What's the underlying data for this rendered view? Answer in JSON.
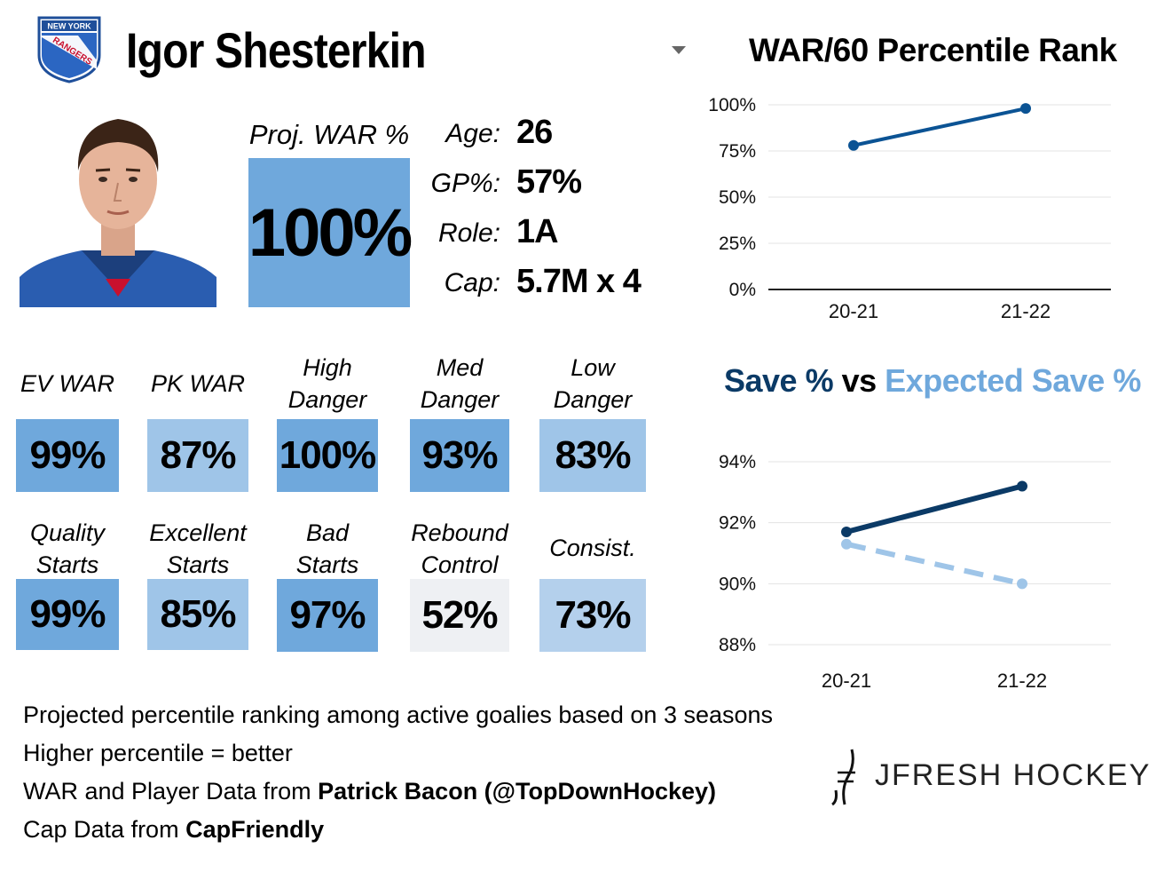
{
  "header": {
    "team_logo_text_top": "NEW YORK",
    "team_logo_text_main": "RANGERS",
    "player_name": "Igor Shesterkin"
  },
  "proj": {
    "label": "Proj. WAR %",
    "value": "100%"
  },
  "info": [
    {
      "key": "Age:",
      "value": "26"
    },
    {
      "key": "GP%:",
      "value": "57%"
    },
    {
      "key": "Role:",
      "value": "1A"
    },
    {
      "key": "Cap:",
      "value": "5.7M x 4"
    }
  ],
  "stats_row1": [
    {
      "label": "EV WAR",
      "value": "99%",
      "color": "#6fa8dc"
    },
    {
      "label": "PK WAR",
      "value": "87%",
      "color": "#9fc5e8"
    },
    {
      "label": "High Danger",
      "value": "100%",
      "color": "#6fa8dc"
    },
    {
      "label": "Med Danger",
      "value": "93%",
      "color": "#6fa8dc"
    },
    {
      "label": "Low Danger",
      "value": "83%",
      "color": "#9fc5e8"
    }
  ],
  "stats_row2": [
    {
      "label": "Quality Starts",
      "value": "99%",
      "color": "#6fa8dc"
    },
    {
      "label": "Excellent Starts",
      "value": "85%",
      "color": "#9fc5e8"
    },
    {
      "label": "Bad Starts",
      "value": "97%",
      "color": "#6fa8dc"
    },
    {
      "label": "Rebound Control",
      "value": "52%",
      "color": "#eef0f3"
    },
    {
      "label": "Consist.",
      "value": "73%",
      "color": "#b4d0ec"
    }
  ],
  "chart_data": [
    {
      "type": "line",
      "title": "WAR/60 Percentile Rank",
      "categories": [
        "20-21",
        "21-22"
      ],
      "series": [
        {
          "values": [
            78,
            98
          ],
          "color": "#0b5394"
        }
      ],
      "ylim": [
        0,
        100
      ],
      "yticks": [
        0,
        25,
        50,
        75,
        100
      ],
      "ytick_labels": [
        "0%",
        "25%",
        "50%",
        "75%",
        "100%"
      ],
      "grid": true
    },
    {
      "type": "line",
      "title_part1": "Save %",
      "title_part2": "vs",
      "title_part3": "Expected Save %",
      "title_color1": "#0b3a66",
      "title_color3": "#6fa8dc",
      "categories": [
        "20-21",
        "21-22"
      ],
      "series": [
        {
          "name": "Save %",
          "values": [
            91.7,
            93.2
          ],
          "color": "#0b3a66",
          "style": "solid"
        },
        {
          "name": "Expected Save %",
          "values": [
            91.3,
            90.0
          ],
          "color": "#9fc5e8",
          "style": "dashed"
        }
      ],
      "ylim": [
        88,
        94
      ],
      "yticks": [
        88,
        90,
        92,
        94
      ],
      "ytick_labels": [
        "88%",
        "90%",
        "92%",
        "94%"
      ],
      "grid": true
    }
  ],
  "notes": {
    "line1": "Projected percentile ranking among active goalies based on 3 seasons",
    "line2": "Higher percentile = better",
    "line3_prefix": "WAR and Player Data from ",
    "line3_bold": "Patrick Bacon (@TopDownHockey)",
    "line4_prefix": "Cap Data from ",
    "line4_bold": "CapFriendly"
  },
  "brand": {
    "name": "JFRESH HOCKEY"
  }
}
